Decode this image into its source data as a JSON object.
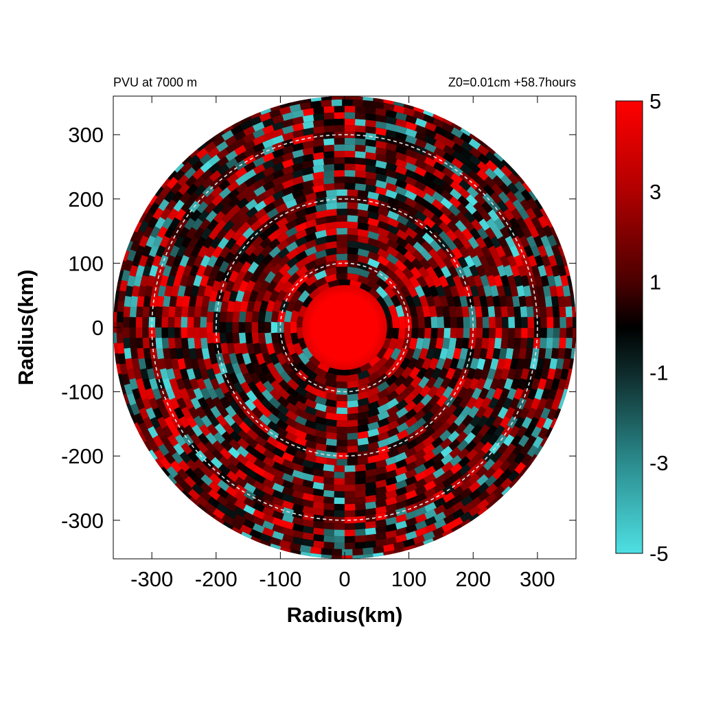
{
  "chart_data": {
    "type": "heatmap",
    "title_left": "PVU at  7000 m",
    "title_right": "Z0=0.01cm  +58.7hours",
    "xlabel": "Radius(km)",
    "ylabel": "Radius(km)",
    "xlim": [
      -360,
      360
    ],
    "ylim": [
      -360,
      360
    ],
    "x_ticks": [
      -300,
      -200,
      -100,
      0,
      100,
      200,
      300
    ],
    "y_ticks": [
      300,
      200,
      100,
      0,
      -100,
      -200,
      -300
    ],
    "domain_radius_km": 360,
    "dashed_circles_km": [
      100,
      200,
      300
    ],
    "core_radius_km": 60,
    "colorbar": {
      "range": [
        -5,
        5
      ],
      "ticks": [
        5,
        3,
        1,
        -1,
        -3,
        -5
      ],
      "colors": {
        "min": "#4ee0e3",
        "mid": "#000000",
        "max": "#ff0000"
      }
    }
  }
}
